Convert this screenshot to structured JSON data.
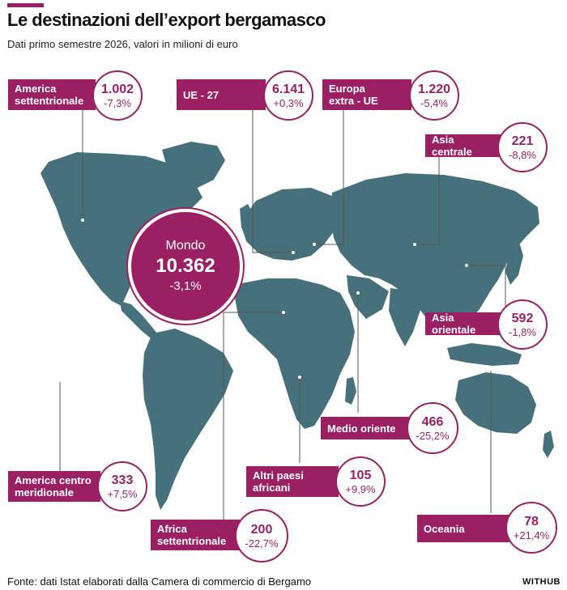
{
  "header": {
    "title": "Le destinazioni dell’export bergamasco",
    "subtitle": "Dati primo semestre 2026, valori in milioni di euro"
  },
  "world": {
    "name": "Mondo",
    "value": "10.362",
    "change": "-3,1%"
  },
  "regions": {
    "north_america": {
      "label": "America\nsettentrionale",
      "value": "1.002",
      "change": "-7,3%"
    },
    "eu27": {
      "label": "UE - 27",
      "value": "6.141",
      "change": "+0,3%"
    },
    "europe_extra": {
      "label": "Europa\nextra - UE",
      "value": "1.220",
      "change": "-5,4%"
    },
    "central_asia": {
      "label": "Asia centrale",
      "value": "221",
      "change": "-8,8%"
    },
    "east_asia": {
      "label": "Asia orientale",
      "value": "592",
      "change": "-1,8%"
    },
    "middle_east": {
      "label": "Medio oriente",
      "value": "466",
      "change": "-25,2%"
    },
    "south_america": {
      "label": "America centro\nmeridionale",
      "value": "333",
      "change": "+7,5%"
    },
    "other_africa": {
      "label": "Altri paesi\nafricani",
      "value": "105",
      "change": "+9,9%"
    },
    "north_africa": {
      "label": "Africa\nsettentrionale",
      "value": "200",
      "change": "-22,7%"
    },
    "oceania": {
      "label": "Oceania",
      "value": "78",
      "change": "+21,4%"
    }
  },
  "footer": {
    "source": "Fonte: dati Istat elaborati dalla Camera di commercio di Bergamo",
    "brand": "WITHUB"
  },
  "colors": {
    "accent": "#9b1f63",
    "land": "#46707c",
    "leader": "#555555"
  }
}
